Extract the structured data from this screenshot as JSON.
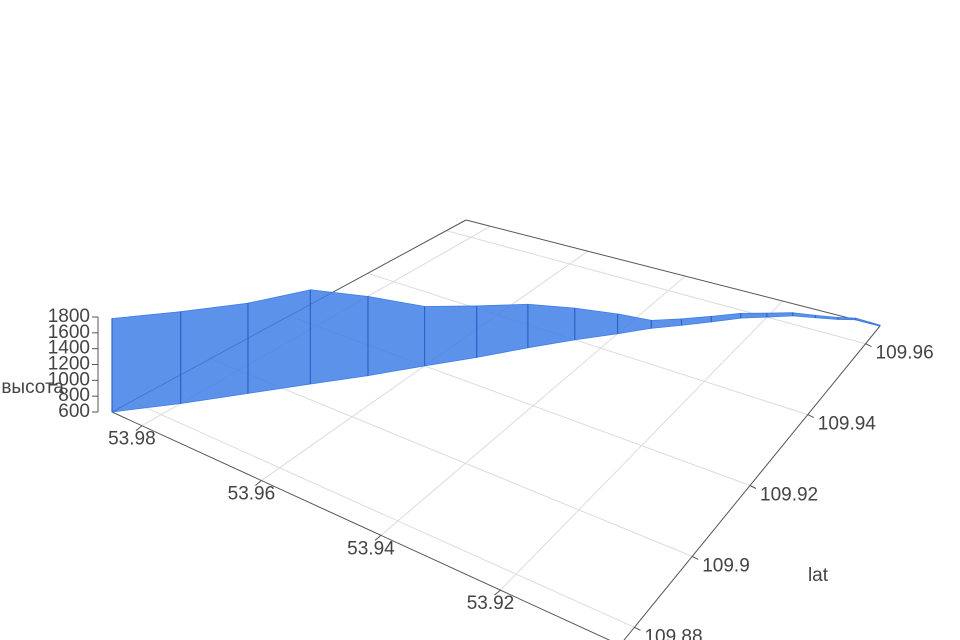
{
  "chart_data": {
    "type": "ribbon3d",
    "z_label": "высота",
    "y_label": "lat",
    "color": "#3f7fe6",
    "x": [
      53.985,
      53.98,
      53.975,
      53.97,
      53.965,
      53.96,
      53.955,
      53.95,
      53.945,
      53.94,
      53.936,
      53.932,
      53.928,
      53.924,
      53.92,
      53.916,
      53.912,
      53.908,
      53.905,
      53.902,
      53.9
    ],
    "y": [
      109.875,
      109.885,
      109.895,
      109.904,
      109.912,
      109.92,
      109.927,
      109.934,
      109.94,
      109.945,
      109.949,
      109.952,
      109.955,
      109.958,
      109.96,
      109.962,
      109.963,
      109.964,
      109.965,
      109.965,
      109.965
    ],
    "z": [
      1780,
      1760,
      1740,
      1790,
      1600,
      1350,
      1250,
      1150,
      1000,
      850,
      700,
      680,
      670,
      660,
      650,
      640,
      630,
      625,
      620,
      615,
      610
    ],
    "xlim": [
      53.9,
      53.985
    ],
    "ylim": [
      109.875,
      109.965
    ],
    "zlim": [
      600,
      1800
    ],
    "xticks": [
      53.92,
      53.94,
      53.96,
      53.98
    ],
    "yticks": [
      109.88,
      109.9,
      109.92,
      109.94,
      109.96
    ],
    "zticks": [
      600,
      800,
      1000,
      1200,
      1400,
      1600,
      1800
    ],
    "grid": true
  }
}
